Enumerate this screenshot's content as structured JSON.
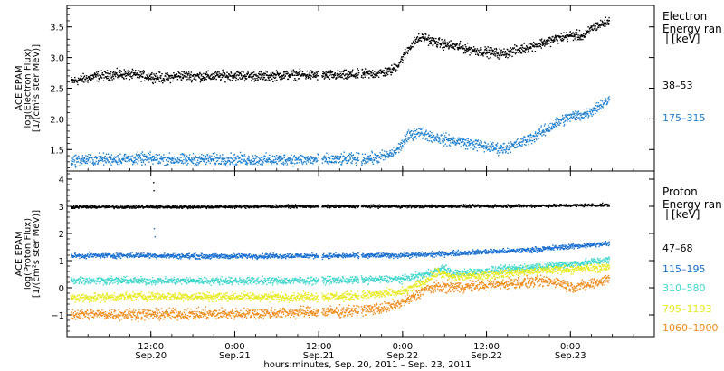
{
  "figure": {
    "xlabel": "hours:minutes, Sep. 20, 2011 – Sep. 23, 2011",
    "x_ticks": [
      {
        "hours": 12,
        "time": "12:00",
        "date": "Sep.20"
      },
      {
        "hours": 24,
        "time": "0:00",
        "date": "Sep.21"
      },
      {
        "hours": 36,
        "time": "12:00",
        "date": "Sep.21"
      },
      {
        "hours": 48,
        "time": "0:00",
        "date": "Sep.22"
      },
      {
        "hours": 60,
        "time": "12:00",
        "date": "Sep.22"
      },
      {
        "hours": 72,
        "time": "0:00",
        "date": "Sep.23"
      }
    ]
  },
  "chart_data": [
    {
      "type": "scatter",
      "panel": "electron",
      "ylabel_lines": [
        "ACE EPAM",
        "log(Electron Flux)",
        "[1/(cm²s ster MeV)]"
      ],
      "ylim": [
        1.15,
        3.85
      ],
      "y_ticks": [
        1.5,
        2.0,
        2.5,
        3.0,
        3.5
      ],
      "y_tick_labels": [
        "1.5",
        "2.0",
        "2.5",
        "3.0",
        "3.5"
      ],
      "xlim_hours": [
        0,
        84
      ],
      "data_gaps_hours": [
        [
          35.9,
          36.4
        ],
        [
          41.7,
          42.0
        ]
      ],
      "legend_title_lines": [
        "Electron",
        "Energy ran",
        "[keV]"
      ],
      "series": [
        {
          "name": "38–53",
          "color": "#000000",
          "noise": 0.06,
          "points": [
            [
              0.5,
              2.62
            ],
            [
              4,
              2.7
            ],
            [
              8,
              2.74
            ],
            [
              12,
              2.7
            ],
            [
              14,
              2.67
            ],
            [
              16,
              2.72
            ],
            [
              20,
              2.7
            ],
            [
              24,
              2.72
            ],
            [
              28,
              2.7
            ],
            [
              32,
              2.73
            ],
            [
              36,
              2.72
            ],
            [
              40,
              2.72
            ],
            [
              44,
              2.75
            ],
            [
              46,
              2.78
            ],
            [
              47,
              2.85
            ],
            [
              48,
              3.02
            ],
            [
              49,
              3.2
            ],
            [
              50,
              3.3
            ],
            [
              51,
              3.35
            ],
            [
              52,
              3.28
            ],
            [
              54,
              3.22
            ],
            [
              56,
              3.18
            ],
            [
              58,
              3.13
            ],
            [
              60,
              3.1
            ],
            [
              62,
              3.07
            ],
            [
              64,
              3.12
            ],
            [
              66,
              3.18
            ],
            [
              68,
              3.25
            ],
            [
              70,
              3.32
            ],
            [
              72,
              3.37
            ],
            [
              74,
              3.36
            ],
            [
              75,
              3.5
            ],
            [
              77,
              3.58
            ],
            [
              77.5,
              3.6
            ]
          ]
        },
        {
          "name": "175–315",
          "color": "#1f7fd0",
          "noise": 0.07,
          "points": [
            [
              0.5,
              1.33
            ],
            [
              4,
              1.35
            ],
            [
              8,
              1.36
            ],
            [
              12,
              1.36
            ],
            [
              16,
              1.34
            ],
            [
              20,
              1.35
            ],
            [
              24,
              1.35
            ],
            [
              28,
              1.34
            ],
            [
              32,
              1.35
            ],
            [
              36,
              1.34
            ],
            [
              40,
              1.35
            ],
            [
              44,
              1.37
            ],
            [
              46,
              1.42
            ],
            [
              47,
              1.48
            ],
            [
              48,
              1.62
            ],
            [
              49,
              1.75
            ],
            [
              50,
              1.8
            ],
            [
              52,
              1.73
            ],
            [
              54,
              1.67
            ],
            [
              56,
              1.64
            ],
            [
              58,
              1.6
            ],
            [
              60,
              1.55
            ],
            [
              62,
              1.52
            ],
            [
              64,
              1.58
            ],
            [
              66,
              1.68
            ],
            [
              68,
              1.8
            ],
            [
              70,
              1.95
            ],
            [
              72,
              2.05
            ],
            [
              74,
              2.08
            ],
            [
              76,
              2.22
            ],
            [
              77.5,
              2.32
            ]
          ]
        }
      ]
    },
    {
      "type": "scatter",
      "panel": "proton",
      "ylabel_lines": [
        "ACE EPAM",
        "log(Proton Flux)",
        "[1/(cm²s ster MeV)]"
      ],
      "ylim": [
        -1.8,
        4.3
      ],
      "y_ticks": [
        -1,
        0,
        1,
        2,
        3,
        4
      ],
      "y_tick_labels": [
        "−1",
        "0",
        "1",
        "2",
        "3",
        "4"
      ],
      "xlim_hours": [
        0,
        84
      ],
      "data_gaps_hours": [
        [
          35.9,
          36.4
        ],
        [
          41.7,
          42.0
        ]
      ],
      "legend_title_lines": [
        "Proton",
        "Energy ran",
        "[keV]"
      ],
      "series": [
        {
          "name": "47–68",
          "color": "#000000",
          "noise": 0.04,
          "points": [
            [
              0.5,
              3.0
            ],
            [
              10,
              3.0
            ],
            [
              20,
              3.0
            ],
            [
              30,
              3.02
            ],
            [
              40,
              3.02
            ],
            [
              50,
              3.02
            ],
            [
              60,
              3.03
            ],
            [
              70,
              3.05
            ],
            [
              77.5,
              3.07
            ]
          ]
        },
        {
          "name": "115–195",
          "color": "#1a6fd1",
          "noise": 0.07,
          "points": [
            [
              0.5,
              1.2
            ],
            [
              10,
              1.22
            ],
            [
              20,
              1.18
            ],
            [
              30,
              1.2
            ],
            [
              40,
              1.2
            ],
            [
              48,
              1.22
            ],
            [
              52,
              1.25
            ],
            [
              56,
              1.3
            ],
            [
              60,
              1.35
            ],
            [
              64,
              1.38
            ],
            [
              68,
              1.45
            ],
            [
              72,
              1.55
            ],
            [
              75,
              1.6
            ],
            [
              77.5,
              1.65
            ]
          ]
        },
        {
          "name": "310–580",
          "color": "#3fd6cc",
          "noise": 0.1,
          "points": [
            [
              0.5,
              0.3
            ],
            [
              10,
              0.28
            ],
            [
              20,
              0.28
            ],
            [
              30,
              0.28
            ],
            [
              40,
              0.3
            ],
            [
              48,
              0.35
            ],
            [
              51,
              0.5
            ],
            [
              54,
              0.75
            ],
            [
              55,
              0.55
            ],
            [
              58,
              0.6
            ],
            [
              62,
              0.7
            ],
            [
              66,
              0.78
            ],
            [
              70,
              0.85
            ],
            [
              74,
              0.95
            ],
            [
              77.5,
              1.05
            ]
          ]
        },
        {
          "name": "795–1193",
          "color": "#e6ea1e",
          "noise": 0.12,
          "points": [
            [
              0.5,
              -0.35
            ],
            [
              10,
              -0.3
            ],
            [
              20,
              -0.3
            ],
            [
              30,
              -0.32
            ],
            [
              40,
              -0.3
            ],
            [
              48,
              -0.15
            ],
            [
              51,
              0.25
            ],
            [
              53,
              0.6
            ],
            [
              55,
              0.4
            ],
            [
              58,
              0.45
            ],
            [
              62,
              0.55
            ],
            [
              66,
              0.62
            ],
            [
              70,
              0.7
            ],
            [
              74,
              0.72
            ],
            [
              77.5,
              0.78
            ]
          ]
        },
        {
          "name": "1060–1900",
          "color": "#f08a1a",
          "noise": 0.15,
          "points": [
            [
              0.5,
              -0.95
            ],
            [
              10,
              -0.95
            ],
            [
              20,
              -0.95
            ],
            [
              30,
              -0.9
            ],
            [
              40,
              -0.85
            ],
            [
              46,
              -0.7
            ],
            [
              49,
              -0.4
            ],
            [
              51,
              -0.05
            ],
            [
              53,
              0.05
            ],
            [
              56,
              0.05
            ],
            [
              60,
              0.12
            ],
            [
              64,
              0.2
            ],
            [
              68,
              0.25
            ],
            [
              70,
              0.25
            ],
            [
              72,
              0.05
            ],
            [
              74,
              0.1
            ],
            [
              77.5,
              0.35
            ]
          ]
        }
      ]
    }
  ]
}
